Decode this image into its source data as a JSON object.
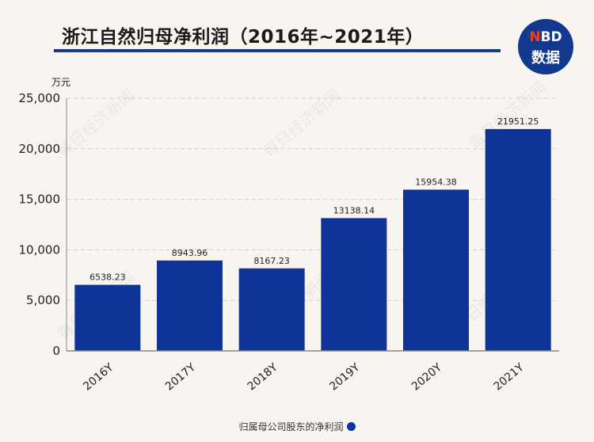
{
  "header": {
    "title": "浙江自然归母净利润（2016年~2021年）",
    "logo_top_n": "N",
    "logo_top_rest": "BD",
    "logo_bottom": "数据",
    "watermark": "每日经济新闻"
  },
  "colors": {
    "bar": "#0f3499",
    "accent": "#153a8f",
    "background": "#f8f5f0"
  },
  "chart_data": {
    "type": "bar",
    "title": "浙江自然归母净利润（2016年~2021年）",
    "ylabel": "万元",
    "xlabel": "",
    "categories": [
      "2016Y",
      "2017Y",
      "2018Y",
      "2019Y",
      "2020Y",
      "2021Y"
    ],
    "series": [
      {
        "name": "归属母公司股东的净利润",
        "values": [
          6538.23,
          8943.96,
          8167.23,
          13138.14,
          15954.38,
          21951.25
        ],
        "value_labels": [
          "6538.23",
          "8943.96",
          "8167.23",
          "13138.14",
          "15954.38",
          "21951.25"
        ]
      }
    ],
    "ylim": [
      0,
      25000
    ],
    "yticks": [
      0,
      5000,
      10000,
      15000,
      20000,
      25000
    ],
    "ytick_labels": [
      "0",
      "5,000",
      "10,000",
      "15,000",
      "20,000",
      "25,000"
    ],
    "grid": true,
    "legend_position": "bottom"
  }
}
